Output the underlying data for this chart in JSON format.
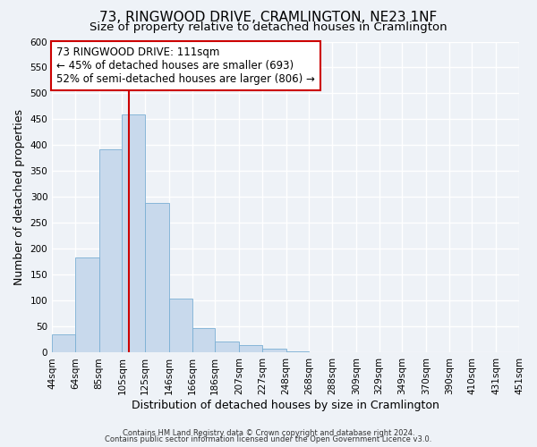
{
  "title": "73, RINGWOOD DRIVE, CRAMLINGTON, NE23 1NF",
  "subtitle": "Size of property relative to detached houses in Cramlington",
  "xlabel": "Distribution of detached houses by size in Cramlington",
  "ylabel": "Number of detached properties",
  "footer_line1": "Contains HM Land Registry data © Crown copyright and database right 2024.",
  "footer_line2": "Contains public sector information licensed under the Open Government Licence v3.0.",
  "bar_edges": [
    44,
    64,
    85,
    105,
    125,
    146,
    166,
    186,
    207,
    227,
    248,
    268,
    288,
    309,
    329,
    349,
    370,
    390,
    410,
    431,
    451
  ],
  "bar_heights": [
    35,
    183,
    393,
    460,
    288,
    105,
    48,
    21,
    15,
    8,
    2,
    1,
    1,
    1,
    0,
    0,
    1,
    0,
    0,
    1
  ],
  "bar_color": "#c8d9ec",
  "bar_edgecolor": "#7aafd4",
  "property_size": 111,
  "vline_x": 111,
  "vline_color": "#cc0000",
  "annotation_text": "73 RINGWOOD DRIVE: 111sqm\n← 45% of detached houses are smaller (693)\n52% of semi-detached houses are larger (806) →",
  "annotation_box_edgecolor": "#cc0000",
  "annotation_box_facecolor": "#ffffff",
  "ylim": [
    0,
    600
  ],
  "yticks": [
    0,
    50,
    100,
    150,
    200,
    250,
    300,
    350,
    400,
    450,
    500,
    550,
    600
  ],
  "background_color": "#eef2f7",
  "grid_color": "#ffffff",
  "title_fontsize": 11,
  "subtitle_fontsize": 9.5,
  "axis_label_fontsize": 9,
  "tick_fontsize": 7.5,
  "annotation_fontsize": 8.5,
  "footer_fontsize": 6
}
